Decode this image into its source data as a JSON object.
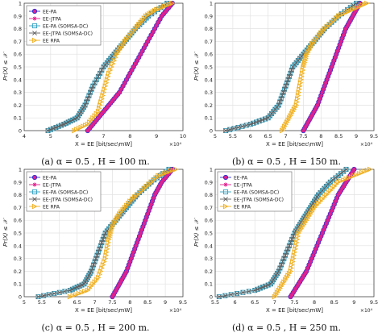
{
  "figure": {
    "ylabel": "Pr(X) ≤ 𝒳",
    "xlabel": "X = EE [bit/sec/mW]",
    "x_multiplier": "×10⁴"
  },
  "legend_entries": [
    {
      "name": "EE-PA",
      "color": "#3030d0",
      "marker": "circle"
    },
    {
      "name": "EE-JTPA",
      "color": "#e0208f",
      "marker": "star"
    },
    {
      "name": "EE-PA (SOMSA-DC)",
      "color": "#30a0c0",
      "marker": "square"
    },
    {
      "name": "EE-JTPA (SOMSA-DC)",
      "color": "#606060",
      "marker": "cross"
    },
    {
      "name": "EE RPA",
      "color": "#f0b020",
      "marker": "triangle-right"
    }
  ],
  "chart_data": [
    {
      "type": "line",
      "caption": "(a) α = 0.5 , H = 100 m.",
      "xlabel": "X = EE [bit/sec\\mW]",
      "x_multiplier": "×10⁴",
      "ylabel": "Pr(X) ≤ 𝒳",
      "xlim": [
        4,
        10
      ],
      "ylim": [
        0,
        1
      ],
      "xticks": [
        "4",
        "5",
        "6",
        "7",
        "8",
        "9",
        "10"
      ],
      "yticks": [
        "0",
        "0.1",
        "0.2",
        "0.3",
        "0.4",
        "0.5",
        "0.6",
        "0.7",
        "0.8",
        "0.9",
        "1"
      ],
      "grid": true,
      "legend_position": "top-left",
      "series": [
        {
          "name": "EE-PA",
          "x": [
            6.4,
            6.8,
            7.2,
            7.6,
            8.0,
            8.4,
            8.8,
            9.2,
            9.6
          ],
          "y": [
            0,
            0.1,
            0.2,
            0.3,
            0.45,
            0.6,
            0.75,
            0.9,
            1
          ]
        },
        {
          "name": "EE-JTPA",
          "x": [
            6.4,
            6.8,
            7.2,
            7.6,
            8.0,
            8.4,
            8.8,
            9.2,
            9.6
          ],
          "y": [
            0,
            0.1,
            0.2,
            0.3,
            0.45,
            0.6,
            0.75,
            0.9,
            1
          ]
        },
        {
          "name": "EE-PA (SOMSA-DC)",
          "x": [
            4.9,
            5.5,
            6.0,
            6.3,
            6.6,
            7.0,
            7.4,
            7.8,
            8.2,
            8.7,
            9.4
          ],
          "y": [
            0,
            0.05,
            0.1,
            0.2,
            0.35,
            0.5,
            0.6,
            0.7,
            0.8,
            0.9,
            1
          ]
        },
        {
          "name": "EE-JTPA (SOMSA-DC)",
          "x": [
            4.9,
            5.5,
            6.0,
            6.3,
            6.6,
            7.0,
            7.4,
            7.8,
            8.2,
            8.7,
            9.4
          ],
          "y": [
            0,
            0.05,
            0.1,
            0.2,
            0.35,
            0.5,
            0.6,
            0.7,
            0.8,
            0.9,
            1
          ]
        },
        {
          "name": "EE RPA",
          "x": [
            5.9,
            6.4,
            6.8,
            7.0,
            7.2,
            7.5,
            7.8,
            8.2,
            8.6,
            9.0,
            9.6
          ],
          "y": [
            0,
            0.05,
            0.15,
            0.3,
            0.45,
            0.6,
            0.7,
            0.8,
            0.9,
            0.95,
            1
          ]
        }
      ]
    },
    {
      "type": "line",
      "caption": "(b) α = 0.5 , H = 150 m.",
      "xlabel": "X = EE [bit/sec\\mW]",
      "x_multiplier": "×10⁴",
      "ylabel": "Pr(X) ≤ 𝒳",
      "xlim": [
        5,
        9.5
      ],
      "ylim": [
        0,
        1
      ],
      "xticks": [
        "5",
        "5.5",
        "6",
        "6.5",
        "7",
        "7.5",
        "8",
        "8.5",
        "9",
        "9.5"
      ],
      "yticks": [
        "0",
        "0.1",
        "0.2",
        "0.3",
        "0.4",
        "0.5",
        "0.6",
        "0.7",
        "0.8",
        "0.9",
        "1"
      ],
      "grid": true,
      "series": [
        {
          "name": "EE-PA",
          "x": [
            7.5,
            7.7,
            7.9,
            8.1,
            8.3,
            8.5,
            8.7,
            8.9,
            9.1
          ],
          "y": [
            0,
            0.1,
            0.2,
            0.35,
            0.5,
            0.65,
            0.8,
            0.9,
            1
          ]
        },
        {
          "name": "EE-JTPA",
          "x": [
            7.5,
            7.7,
            7.9,
            8.1,
            8.3,
            8.5,
            8.7,
            8.9,
            9.1
          ],
          "y": [
            0,
            0.1,
            0.2,
            0.35,
            0.5,
            0.65,
            0.8,
            0.9,
            1
          ]
        },
        {
          "name": "EE-PA (SOMSA-DC)",
          "x": [
            5.3,
            6.0,
            6.5,
            6.8,
            7.0,
            7.2,
            7.5,
            7.8,
            8.1,
            8.5,
            9.0
          ],
          "y": [
            0,
            0.05,
            0.1,
            0.2,
            0.35,
            0.5,
            0.6,
            0.7,
            0.8,
            0.9,
            1
          ]
        },
        {
          "name": "EE-JTPA (SOMSA-DC)",
          "x": [
            5.3,
            6.0,
            6.5,
            6.8,
            7.0,
            7.2,
            7.5,
            7.8,
            8.1,
            8.5,
            9.0
          ],
          "y": [
            0,
            0.05,
            0.1,
            0.2,
            0.35,
            0.5,
            0.6,
            0.7,
            0.8,
            0.9,
            1
          ]
        },
        {
          "name": "EE RPA",
          "x": [
            6.9,
            7.1,
            7.3,
            7.4,
            7.5,
            7.6,
            7.8,
            8.1,
            8.5,
            8.9,
            9.3
          ],
          "y": [
            0,
            0.1,
            0.2,
            0.35,
            0.5,
            0.6,
            0.7,
            0.8,
            0.9,
            0.95,
            1
          ]
        }
      ]
    },
    {
      "type": "line",
      "caption": "(c) α = 0.5 , H = 200 m.",
      "xlabel": "X = EE [bit/sec\\mW]",
      "x_multiplier": "×10⁴",
      "ylabel": "Pr(X) ≤ 𝒳",
      "xlim": [
        5,
        9.5
      ],
      "ylim": [
        0,
        1
      ],
      "xticks": [
        "5",
        "5.5",
        "6",
        "6.5",
        "7",
        "7.5",
        "8",
        "8.5",
        "9",
        "9.5"
      ],
      "yticks": [
        "0",
        "0.1",
        "0.2",
        "0.3",
        "0.4",
        "0.5",
        "0.6",
        "0.7",
        "0.8",
        "0.9",
        "1"
      ],
      "grid": true,
      "legend_position": "top-left",
      "series": [
        {
          "name": "EE-PA",
          "x": [
            7.5,
            7.7,
            7.9,
            8.1,
            8.3,
            8.5,
            8.7,
            8.9,
            9.2
          ],
          "y": [
            0,
            0.1,
            0.2,
            0.35,
            0.5,
            0.65,
            0.8,
            0.9,
            1
          ]
        },
        {
          "name": "EE-JTPA",
          "x": [
            7.5,
            7.7,
            7.9,
            8.1,
            8.3,
            8.5,
            8.7,
            8.9,
            9.2
          ],
          "y": [
            0,
            0.1,
            0.2,
            0.35,
            0.5,
            0.65,
            0.8,
            0.9,
            1
          ]
        },
        {
          "name": "EE-PA (SOMSA-DC)",
          "x": [
            5.4,
            6.3,
            6.7,
            6.9,
            7.1,
            7.3,
            7.6,
            7.9,
            8.2,
            8.6,
            9.1
          ],
          "y": [
            0,
            0.05,
            0.1,
            0.2,
            0.35,
            0.5,
            0.6,
            0.7,
            0.8,
            0.9,
            1
          ]
        },
        {
          "name": "EE-JTPA (SOMSA-DC)",
          "x": [
            5.4,
            6.3,
            6.7,
            6.9,
            7.1,
            7.3,
            7.6,
            7.9,
            8.2,
            8.6,
            9.1
          ],
          "y": [
            0,
            0.05,
            0.1,
            0.2,
            0.35,
            0.5,
            0.6,
            0.7,
            0.8,
            0.9,
            1
          ]
        },
        {
          "name": "EE RPA",
          "x": [
            6.3,
            6.8,
            7.1,
            7.3,
            7.4,
            7.5,
            7.7,
            8.0,
            8.4,
            8.8,
            9.3
          ],
          "y": [
            0,
            0.05,
            0.15,
            0.3,
            0.45,
            0.55,
            0.65,
            0.75,
            0.85,
            0.95,
            1
          ]
        }
      ]
    },
    {
      "type": "line",
      "caption": "(d) α = 0.5 , H = 250 m.",
      "xlabel": "X = EE [bit/sec\\mW]",
      "x_multiplier": "×10⁴",
      "ylabel": "Pr(X) ≤ 𝒳",
      "xlim": [
        5.5,
        9.5
      ],
      "ylim": [
        0,
        1
      ],
      "xticks": [
        "5.5",
        "6",
        "6.5",
        "7",
        "7.5",
        "8",
        "8.5",
        "9",
        "9.5"
      ],
      "yticks": [
        "0",
        "0.1",
        "0.2",
        "0.3",
        "0.4",
        "0.5",
        "0.6",
        "0.7",
        "0.8",
        "0.9",
        "1"
      ],
      "grid": true,
      "legend_position": "top-left",
      "series": [
        {
          "name": "EE-PA",
          "x": [
            7.4,
            7.6,
            7.8,
            8.0,
            8.2,
            8.4,
            8.6,
            8.8,
            9.0
          ],
          "y": [
            0,
            0.1,
            0.2,
            0.35,
            0.5,
            0.65,
            0.8,
            0.9,
            1
          ]
        },
        {
          "name": "EE-JTPA",
          "x": [
            7.4,
            7.6,
            7.8,
            8.0,
            8.2,
            8.4,
            8.6,
            8.8,
            9.0
          ],
          "y": [
            0,
            0.1,
            0.2,
            0.35,
            0.5,
            0.65,
            0.8,
            0.9,
            1
          ]
        },
        {
          "name": "EE-PA (SOMSA-DC)",
          "x": [
            5.6,
            6.5,
            6.9,
            7.1,
            7.3,
            7.5,
            7.7,
            7.9,
            8.1,
            8.4,
            8.8
          ],
          "y": [
            0,
            0.05,
            0.1,
            0.2,
            0.35,
            0.5,
            0.6,
            0.7,
            0.8,
            0.9,
            1
          ]
        },
        {
          "name": "EE-JTPA (SOMSA-DC)",
          "x": [
            5.6,
            6.5,
            6.9,
            7.1,
            7.3,
            7.5,
            7.7,
            7.9,
            8.1,
            8.4,
            8.8
          ],
          "y": [
            0,
            0.05,
            0.1,
            0.2,
            0.35,
            0.5,
            0.6,
            0.7,
            0.8,
            0.9,
            1
          ]
        },
        {
          "name": "EE RPA",
          "x": [
            7.0,
            7.2,
            7.4,
            7.5,
            7.6,
            7.8,
            8.0,
            8.3,
            8.6,
            9.0,
            9.4
          ],
          "y": [
            0,
            0.1,
            0.2,
            0.35,
            0.5,
            0.6,
            0.7,
            0.8,
            0.9,
            0.95,
            1
          ]
        }
      ]
    }
  ]
}
